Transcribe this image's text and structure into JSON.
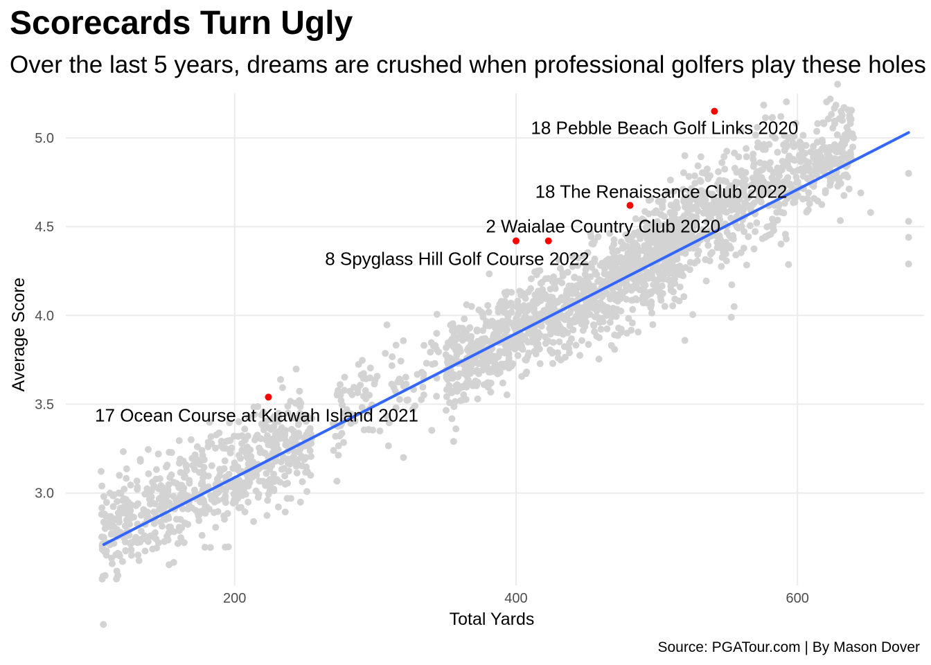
{
  "title": "Scorecards Turn Ugly",
  "subtitle": "Over the last 5 years, dreams are crushed when professional golfers play these holes",
  "caption": "Source: PGATour.com | By Mason Dover",
  "colors": {
    "points": "#d3d3d3",
    "highlight": "#ff0000",
    "trend": "#3366ff",
    "grid": "#ebebeb",
    "tick_text": "#4d4d4d"
  },
  "chart_data": {
    "type": "scatter",
    "xlabel": "Total Yards",
    "ylabel": "Average Score",
    "xlim": [
      80,
      690
    ],
    "ylim": [
      2.48,
      5.25
    ],
    "x_ticks": [
      200,
      400,
      600
    ],
    "y_ticks": [
      3.0,
      3.5,
      4.0,
      4.5,
      5.0
    ],
    "x_tick_labels": [
      "200",
      "400",
      "600"
    ],
    "y_tick_labels": [
      "3.0",
      "3.5",
      "4.0",
      "4.5",
      "5.0"
    ],
    "grid": true,
    "trend_line": {
      "x": [
        107,
        679
      ],
      "y": [
        2.71,
        5.03
      ]
    },
    "highlighted_points": [
      {
        "x": 541,
        "y": 5.15,
        "label": "18 Pebble Beach Golf Links 2020"
      },
      {
        "x": 481,
        "y": 4.62,
        "label": "18 The Renaissance Club 2022"
      },
      {
        "x": 423,
        "y": 4.42,
        "label": "2 Waialae Country Club 2020"
      },
      {
        "x": 400,
        "y": 4.42,
        "label": "8 Spyglass Hill Golf Course 2022"
      },
      {
        "x": 224,
        "y": 3.54,
        "label": "17 Ocean Course at Kiawah Island 2021"
      }
    ],
    "point_clusters": [
      {
        "x_range": [
          105,
          255
        ],
        "y_center_at_x_min": 2.74,
        "slope_per_yard": 0.004,
        "spread": 0.14,
        "count": 650
      },
      {
        "x_range": [
          350,
          520
        ],
        "y_center_at_x_min": 3.7,
        "slope_per_yard": 0.004,
        "spread": 0.13,
        "count": 1100
      },
      {
        "x_range": [
          270,
          345
        ],
        "y_center_at_x_min": 3.42,
        "slope_per_yard": 0.004,
        "spread": 0.15,
        "count": 110
      },
      {
        "x_range": [
          490,
          640
        ],
        "y_center_at_x_min": 4.37,
        "slope_per_yard": 0.004,
        "spread": 0.15,
        "count": 750
      }
    ],
    "outlier_points": [
      {
        "x": 679,
        "y": 4.8
      },
      {
        "x": 679,
        "y": 4.53
      },
      {
        "x": 679,
        "y": 4.44
      },
      {
        "x": 679,
        "y": 4.29
      },
      {
        "x": 107,
        "y": 2.98
      },
      {
        "x": 107,
        "y": 2.75
      },
      {
        "x": 117,
        "y": 2.66
      },
      {
        "x": 520,
        "y": 3.86
      },
      {
        "x": 555,
        "y": 4.05
      },
      {
        "x": 553,
        "y": 3.99
      },
      {
        "x": 320,
        "y": 3.2
      },
      {
        "x": 652,
        "y": 4.58
      },
      {
        "x": 645,
        "y": 4.69
      },
      {
        "x": 631,
        "y": 5.15
      },
      {
        "x": 254,
        "y": 3.1
      }
    ]
  }
}
